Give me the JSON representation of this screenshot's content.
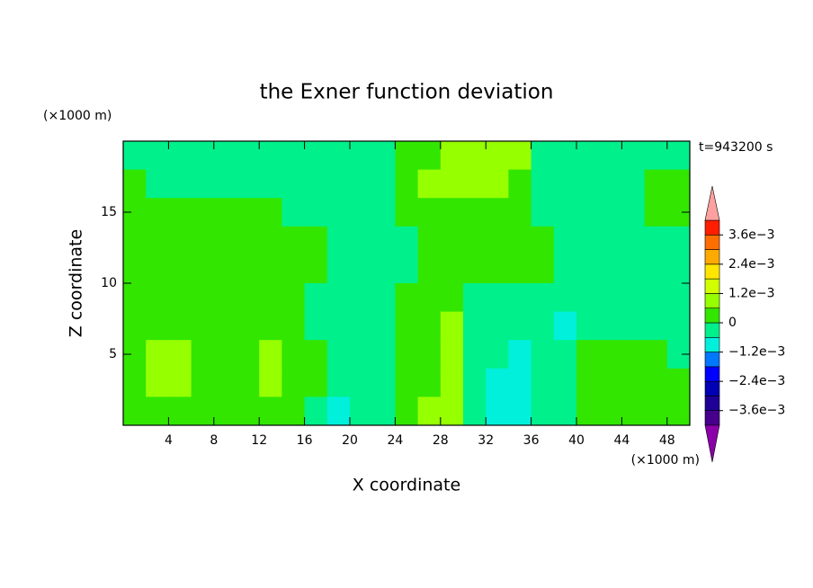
{
  "chart_data": {
    "type": "contourf",
    "title": "the Exner function deviation",
    "x_unit": "(×1000 m)",
    "y_unit": "(×1000 m)",
    "time_label": "t=943200 s",
    "xlabel": "X coordinate",
    "ylabel": "Z coordinate",
    "xlim": [
      0,
      50
    ],
    "ylim": [
      0,
      20
    ],
    "xticks": [
      4,
      8,
      12,
      16,
      20,
      24,
      28,
      32,
      36,
      40,
      44,
      48
    ],
    "yticks": [
      5,
      10,
      15
    ],
    "x": [
      1,
      3,
      5,
      7,
      9,
      11,
      13,
      15,
      17,
      19,
      21,
      23,
      25,
      27,
      29,
      31,
      33,
      35,
      37,
      39,
      41,
      43,
      45,
      47,
      49
    ],
    "y": [
      19,
      17,
      15,
      13,
      11,
      9,
      7,
      5,
      3,
      1
    ],
    "z": [
      [
        -0.0003,
        -0.0003,
        -0.0003,
        -0.0003,
        -0.0003,
        -0.0003,
        -0.0003,
        -0.0003,
        -0.0003,
        -0.0003,
        -0.0003,
        -0.0003,
        0.0003,
        0.0003,
        0.0009,
        0.0009,
        0.0009,
        0.0009,
        -0.0003,
        -0.0003,
        -0.0003,
        -0.0003,
        -0.0003,
        -0.0003,
        -0.0003
      ],
      [
        0.0003,
        -0.0003,
        -0.0003,
        -0.0003,
        -0.0003,
        -0.0003,
        -0.0003,
        -0.0003,
        -0.0003,
        -0.0003,
        -0.0003,
        -0.0003,
        0.0003,
        0.0009,
        0.0009,
        0.0009,
        0.0009,
        0.0003,
        -0.0003,
        -0.0003,
        -0.0003,
        -0.0003,
        -0.0003,
        0.0003,
        0.0003
      ],
      [
        0.0003,
        0.0003,
        0.0003,
        0.0003,
        0.0003,
        0.0003,
        0.0003,
        -0.0003,
        -0.0003,
        -0.0003,
        -0.0003,
        -0.0003,
        0.0003,
        0.0003,
        0.0003,
        0.0003,
        0.0003,
        0.0003,
        -0.0003,
        -0.0003,
        -0.0003,
        -0.0003,
        -0.0003,
        0.0003,
        0.0003
      ],
      [
        0.0003,
        0.0003,
        0.0003,
        0.0003,
        0.0003,
        0.0003,
        0.0003,
        0.0003,
        0.0003,
        -0.0003,
        -0.0003,
        -0.0003,
        -0.0003,
        0.0003,
        0.0003,
        0.0003,
        0.0003,
        0.0003,
        0.0003,
        -0.0003,
        -0.0003,
        -0.0003,
        -0.0003,
        -0.0003,
        -0.0003
      ],
      [
        0.0003,
        0.0003,
        0.0003,
        0.0003,
        0.0003,
        0.0003,
        0.0003,
        0.0003,
        0.0003,
        -0.0003,
        -0.0003,
        -0.0003,
        -0.0003,
        0.0003,
        0.0003,
        0.0003,
        0.0003,
        0.0003,
        0.0003,
        -0.0003,
        -0.0003,
        -0.0003,
        -0.0003,
        -0.0003,
        -0.0003
      ],
      [
        0.0003,
        0.0003,
        0.0003,
        0.0003,
        0.0003,
        0.0003,
        0.0003,
        0.0003,
        -0.0003,
        -0.0003,
        -0.0003,
        -0.0003,
        0.0003,
        0.0003,
        0.0003,
        -0.0003,
        -0.0003,
        -0.0003,
        -0.0003,
        -0.0003,
        -0.0003,
        -0.0003,
        -0.0003,
        -0.0003,
        -0.0003
      ],
      [
        0.0003,
        0.0003,
        0.0003,
        0.0003,
        0.0003,
        0.0003,
        0.0003,
        0.0003,
        -0.0003,
        -0.0003,
        -0.0003,
        -0.0003,
        0.0003,
        0.0003,
        0.0009,
        -0.0003,
        -0.0003,
        -0.0003,
        -0.0003,
        -0.0009,
        -0.0003,
        -0.0003,
        -0.0003,
        -0.0003,
        -0.0003
      ],
      [
        0.0003,
        0.0009,
        0.0009,
        0.0003,
        0.0003,
        0.0003,
        0.0009,
        0.0003,
        0.0003,
        -0.0003,
        -0.0003,
        -0.0003,
        0.0003,
        0.0003,
        0.0009,
        -0.0003,
        -0.0003,
        -0.0009,
        -0.0003,
        -0.0003,
        0.0003,
        0.0003,
        0.0003,
        0.0003,
        -0.0003
      ],
      [
        0.0003,
        0.0009,
        0.0009,
        0.0003,
        0.0003,
        0.0003,
        0.0009,
        0.0003,
        0.0003,
        -0.0003,
        -0.0003,
        -0.0003,
        0.0003,
        0.0003,
        0.0009,
        -0.0003,
        -0.0009,
        -0.0009,
        -0.0003,
        -0.0003,
        0.0003,
        0.0003,
        0.0003,
        0.0003,
        0.0003
      ],
      [
        0.0003,
        0.0003,
        0.0003,
        0.0003,
        0.0003,
        0.0003,
        0.0003,
        0.0003,
        -0.0003,
        -0.0009,
        -0.0003,
        -0.0003,
        0.0003,
        0.0009,
        0.0009,
        -0.0003,
        -0.0009,
        -0.0009,
        -0.0003,
        -0.0003,
        0.0003,
        0.0003,
        0.0003,
        0.0003,
        0.0003
      ]
    ],
    "colorbar": {
      "levels": [
        -0.0042,
        -0.0036,
        -0.003,
        -0.0024,
        -0.0018,
        -0.0012,
        -0.0006,
        0,
        0.0006,
        0.0012,
        0.0018,
        0.0024,
        0.003,
        0.0036,
        0.0042
      ],
      "colors": [
        "#46008c",
        "#1e0096",
        "#0000b4",
        "#0000ff",
        "#0078ff",
        "#00f0dc",
        "#00f08c",
        "#32e600",
        "#96ff00",
        "#d2ff00",
        "#ffe600",
        "#ffaa00",
        "#ff6e00",
        "#ff1e00"
      ],
      "extend_colors": [
        "#8c00aa",
        "#ffa0a0"
      ],
      "ticks": [
        {
          "value": -0.0036,
          "label": "−3.6e−3"
        },
        {
          "value": -0.0024,
          "label": "−2.4e−3"
        },
        {
          "value": -0.0012,
          "label": "−1.2e−3"
        },
        0,
        {
          "value": 0.0012,
          "label": "1.2e−3"
        },
        {
          "value": 0.0024,
          "label": "2.4e−3"
        },
        {
          "value": 0.0036,
          "label": "3.6e−3"
        }
      ]
    }
  }
}
